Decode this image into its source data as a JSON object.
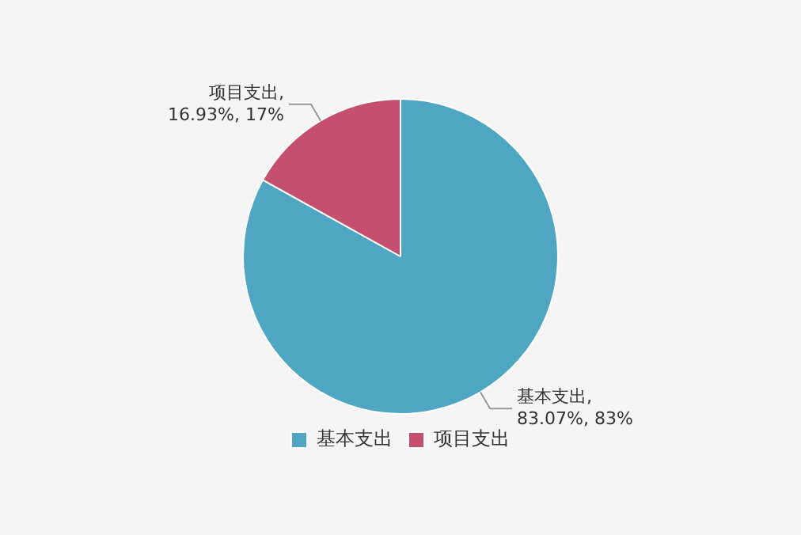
{
  "chart_data": {
    "type": "pie",
    "categories": [
      "基本支出",
      "项目支出"
    ],
    "values": [
      83.07,
      16.93
    ],
    "colors": [
      "#4fa6c2",
      "#c44f6e"
    ],
    "value_labels": [
      "基本支出,\n83.07%, 83%",
      "项目支出,\n16.93%, 17%"
    ],
    "legend": "bottom"
  }
}
